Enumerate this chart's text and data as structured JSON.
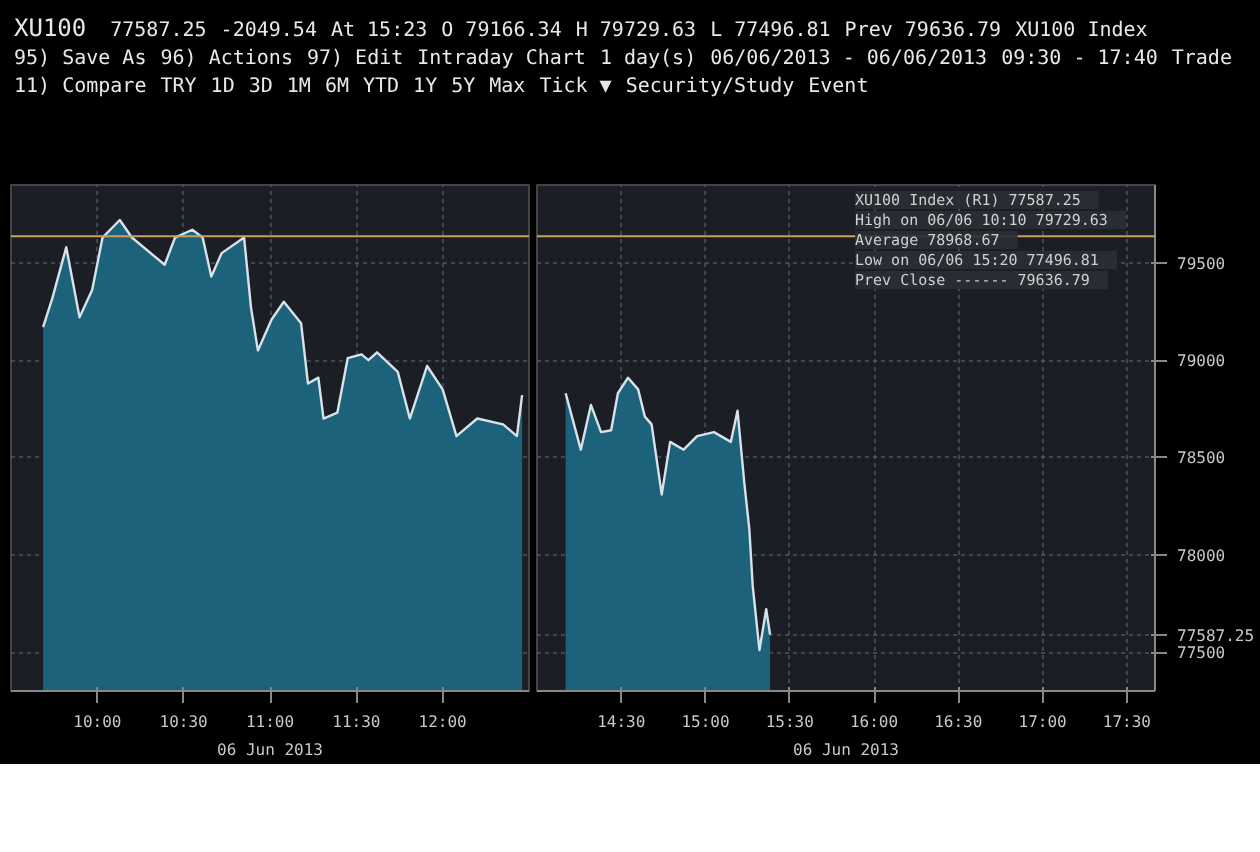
{
  "chart_data": [
    {
      "type": "area",
      "title": "XU100",
      "annotations": [
        "77587.25",
        "-2049.54",
        "At 15:23",
        "O 79166.34",
        "H 79729.63",
        "L 77496.81",
        "Prev 79636.79",
        "XU100 Index",
        "95) Save As",
        "96) Actions",
        "97) Edit",
        "Intraday Chart",
        "1 day(s)",
        "06/06/2013 - 06/06/2013",
        "09:30 - 17:40",
        "Trade",
        "11) Compare",
        "TRY",
        "1D",
        "3D",
        "1M",
        "6M",
        "YTD",
        "1Y",
        "5Y",
        "Max",
        "Tick ▼",
        "Security/Study",
        "Event"
      ],
      "xlabel": "06 Jun 2013",
      "xlim": [
        9.5,
        12.5
      ],
      "ylim": [
        77300,
        79900
      ],
      "yticks": [
        77500,
        78000,
        78500,
        79000,
        79500
      ],
      "tick_labels": "x",
      "grid": true,
      "xticks": [
        {
          "value": 10,
          "label": "10:00"
        },
        {
          "value": 10.5,
          "label": "10:30"
        },
        {
          "value": 11,
          "label": "11:00"
        },
        {
          "value": 11.5,
          "label": "11:30"
        },
        {
          "value": 12,
          "label": "12:00"
        }
      ],
      "ref_lines": [
        {
          "axis": "y",
          "value": 79636.79,
          "color": "#c8a060"
        }
      ],
      "x": [
        9.686,
        9.74,
        9.82,
        9.897,
        9.97,
        10.03,
        10.13,
        10.2,
        10.39,
        10.45,
        10.55,
        10.61,
        10.66,
        10.72,
        10.85,
        10.89,
        10.93,
        11.01,
        11.08,
        11.18,
        11.22,
        11.28,
        11.31,
        11.39,
        11.45,
        11.53,
        11.57,
        11.62,
        11.74,
        11.81,
        11.91,
        12.0,
        12.08,
        12.2,
        12.35,
        12.43,
        12.46
      ],
      "series": [
        {
          "color": "#1d6680",
          "values": [
            79170,
            79320,
            79580,
            79220,
            79360,
            79630,
            79720,
            79630,
            79490,
            79630,
            79670,
            79630,
            79430,
            79550,
            79630,
            79270,
            79050,
            79210,
            79300,
            79190,
            78880,
            78910,
            78700,
            78730,
            79010,
            79030,
            79000,
            79040,
            78940,
            78700,
            78970,
            78850,
            78610,
            78700,
            78670,
            78610,
            78820
          ]
        }
      ]
    },
    {
      "type": "area",
      "annotations": [
        "XU100 Index (R1)   77587.25",
        "High on 06/06 10:10   79729.63",
        "Average   78968.67",
        "Low on 06/06 15:20   77496.81",
        "Prev Close ------   79636.79"
      ],
      "xlabel": "06 Jun 2013",
      "xlim": [
        14,
        17.667
      ],
      "ylim": [
        77300,
        79900
      ],
      "yticks": [
        77500,
        {
          "value": 77587.25,
          "label": "77587.25"
        },
        78000,
        78500,
        79000,
        79500
      ],
      "grid": true,
      "xticks": [
        {
          "value": 14.5,
          "label": "14:30"
        },
        {
          "value": 15,
          "label": "15:00"
        },
        {
          "value": 15.5,
          "label": "15:30"
        },
        {
          "value": 16,
          "label": "16:00"
        },
        {
          "value": 16.5,
          "label": "16:30"
        },
        {
          "value": 17,
          "label": "17:00"
        },
        {
          "value": 17.5,
          "label": "17:30"
        }
      ],
      "ref_lines": [
        {
          "axis": "y",
          "value": 79636.79,
          "color": "#c8a060"
        }
      ],
      "x": [
        14.17,
        14.26,
        14.32,
        14.38,
        14.44,
        14.48,
        14.54,
        14.6,
        14.64,
        14.68,
        14.74,
        14.79,
        14.87,
        14.95,
        15.05,
        15.15,
        15.19,
        15.23,
        15.26,
        15.28,
        15.32,
        15.36,
        15.383
      ],
      "series": [
        {
          "color": "#1d6680",
          "values": [
            78830,
            78540,
            78770,
            78630,
            78640,
            78830,
            78910,
            78850,
            78710,
            78670,
            78310,
            78580,
            78540,
            78610,
            78630,
            78580,
            78740,
            78370,
            78130,
            77840,
            77510,
            77720,
            77590
          ]
        }
      ]
    }
  ]
}
